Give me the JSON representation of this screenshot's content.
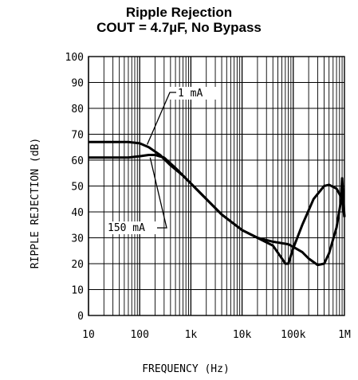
{
  "chart_data": {
    "type": "line",
    "title": "Ripple Rejection",
    "subtitle": "COUT = 4.7µF, No Bypass",
    "xlabel": "FREQUENCY (Hz)",
    "ylabel": "RIPPLE REJECTION (dB)",
    "x_scale": "log",
    "xlim": [
      10,
      1000000
    ],
    "ylim": [
      0,
      100
    ],
    "grid": true,
    "x_ticks": [
      10,
      100,
      1000,
      10000,
      100000,
      1000000
    ],
    "x_tick_labels": [
      "10",
      "100",
      "1k",
      "10k",
      "100k",
      "1M"
    ],
    "y_ticks": [
      0,
      10,
      20,
      30,
      40,
      50,
      60,
      70,
      80,
      90,
      100
    ],
    "y_tick_labels": [
      "0",
      "10",
      "20",
      "30",
      "40",
      "50",
      "60",
      "70",
      "80",
      "90",
      "100"
    ],
    "series": [
      {
        "name": "1 mA",
        "x": [
          10,
          30,
          60,
          100,
          150,
          250,
          400,
          700,
          1000,
          2000,
          4000,
          10000,
          20000,
          40000,
          60000,
          70000,
          80000,
          100000,
          150000,
          250000,
          400000,
          500000,
          700000,
          900000,
          1000000
        ],
        "y": [
          67,
          67,
          67,
          66.5,
          65,
          62,
          58,
          54,
          51,
          45,
          39,
          33,
          30,
          27,
          22,
          20,
          20,
          26,
          35,
          45,
          50,
          50.5,
          49,
          45,
          38
        ]
      },
      {
        "name": "150 mA",
        "x": [
          10,
          30,
          60,
          100,
          150,
          200,
          300,
          500,
          1000,
          2000,
          4000,
          10000,
          20000,
          40000,
          80000,
          100000,
          150000,
          200000,
          300000,
          400000,
          500000,
          700000,
          850000,
          900000,
          1000000
        ],
        "y": [
          61,
          61,
          61,
          61.5,
          62,
          62,
          61,
          57,
          51,
          45,
          39,
          33,
          30,
          28.5,
          27.5,
          26.5,
          24.5,
          22,
          19.5,
          20,
          24,
          34,
          44,
          53,
          38
        ]
      }
    ],
    "annotations": [
      "1 mA",
      "150 mA"
    ]
  }
}
